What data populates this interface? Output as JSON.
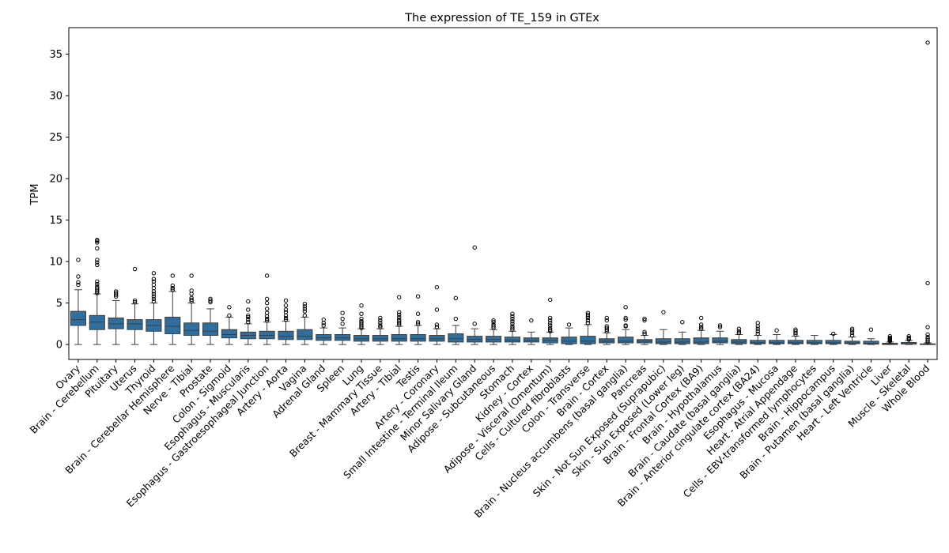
{
  "chart_data": {
    "type": "box",
    "title": "The expression of TE_159 in GTEx",
    "xlabel": "",
    "ylabel": "TPM",
    "ylim": [
      -1.8,
      38.2
    ],
    "yticks": [
      0,
      5,
      10,
      15,
      20,
      25,
      30,
      35
    ],
    "box_color": "#2f6f9f",
    "categories": [
      "Ovary",
      "Brain - Cerebellum",
      "Pituitary",
      "Uterus",
      "Thyroid",
      "Brain - Cerebellar Hemisphere",
      "Nerve - Tibial",
      "Prostate",
      "Colon - Sigmoid",
      "Esophagus - Muscularis",
      "Esophagus - Gastroesophageal Junction",
      "Artery - Aorta",
      "Vagina",
      "Adrenal Gland",
      "Spleen",
      "Lung",
      "Breast - Mammary Tissue",
      "Artery - Tibial",
      "Testis",
      "Artery - Coronary",
      "Small Intestine - Terminal Ileum",
      "Minor Salivary Gland",
      "Adipose - Subcutaneous",
      "Stomach",
      "Kidney - Cortex",
      "Adipose - Visceral (Omentum)",
      "Cells - Cultured fibroblasts",
      "Colon - Transverse",
      "Brain - Cortex",
      "Brain - Nucleus accumbens (basal ganglia)",
      "Pancreas",
      "Skin - Not Sun Exposed (Suprapubic)",
      "Skin - Sun Exposed (Lower leg)",
      "Brain - Frontal Cortex (BA9)",
      "Brain - Hypothalamus",
      "Brain - Caudate (basal ganglia)",
      "Brain - Anterior cingulate cortex (BA24)",
      "Esophagus - Mucosa",
      "Heart - Atrial Appendage",
      "Cells - EBV-transformed lymphocytes",
      "Brain - Hippocampus",
      "Brain - Putamen (basal ganglia)",
      "Heart - Left Ventricle",
      "Liver",
      "Muscle - Skeletal",
      "Whole Blood"
    ],
    "boxes": [
      {
        "whislo": 0,
        "q1": 2.3,
        "med": 3.0,
        "q3": 4.0,
        "whishi": 6.6,
        "fliers": [
          7.2,
          7.5,
          8.2,
          10.2
        ]
      },
      {
        "whislo": 0,
        "q1": 1.8,
        "med": 2.7,
        "q3": 3.5,
        "whishi": 6.1,
        "fliers": [
          6.2,
          6.4,
          6.6,
          6.8,
          7.0,
          7.3,
          7.6,
          9.6,
          9.9,
          10.2,
          11.6,
          12.3,
          12.5,
          12.6
        ]
      },
      {
        "whislo": 0,
        "q1": 1.9,
        "med": 2.5,
        "q3": 3.2,
        "whishi": 5.3,
        "fliers": [
          5.8,
          6.0,
          6.2,
          6.4
        ]
      },
      {
        "whislo": 0,
        "q1": 1.8,
        "med": 2.5,
        "q3": 3.0,
        "whishi": 4.9,
        "fliers": [
          5.1,
          5.3,
          9.1
        ]
      },
      {
        "whislo": 0,
        "q1": 1.6,
        "med": 2.3,
        "q3": 3.0,
        "whishi": 5.0,
        "fliers": [
          5.2,
          5.5,
          5.8,
          6.1,
          6.4,
          6.8,
          7.2,
          7.6,
          7.9,
          8.6
        ]
      },
      {
        "whislo": 0,
        "q1": 1.3,
        "med": 2.2,
        "q3": 3.3,
        "whishi": 6.4,
        "fliers": [
          6.6,
          6.8,
          7.1,
          8.3
        ]
      },
      {
        "whislo": 0,
        "q1": 1.1,
        "med": 1.7,
        "q3": 2.6,
        "whishi": 5.0,
        "fliers": [
          5.2,
          5.4,
          5.6,
          6.1,
          6.5,
          8.3
        ]
      },
      {
        "whislo": 0,
        "q1": 1.1,
        "med": 1.6,
        "q3": 2.6,
        "whishi": 4.3,
        "fliers": [
          5.1,
          5.3,
          5.5
        ]
      },
      {
        "whislo": 0,
        "q1": 0.8,
        "med": 1.2,
        "q3": 1.8,
        "whishi": 3.3,
        "fliers": [
          3.5,
          4.5
        ]
      },
      {
        "whislo": 0,
        "q1": 0.7,
        "med": 1.1,
        "q3": 1.5,
        "whishi": 2.5,
        "fliers": [
          2.7,
          3.0,
          3.3,
          3.5,
          4.2,
          5.2
        ]
      },
      {
        "whislo": 0,
        "q1": 0.7,
        "med": 1.1,
        "q3": 1.6,
        "whishi": 2.7,
        "fliers": [
          2.9,
          3.1,
          3.4,
          3.8,
          4.3,
          5.0,
          5.5,
          8.3
        ]
      },
      {
        "whislo": 0,
        "q1": 0.6,
        "med": 1.0,
        "q3": 1.6,
        "whishi": 2.8,
        "fliers": [
          3.0,
          3.2,
          3.5,
          3.9,
          4.2,
          4.7,
          5.3
        ]
      },
      {
        "whislo": 0,
        "q1": 0.6,
        "med": 1.0,
        "q3": 1.8,
        "whishi": 3.3,
        "fliers": [
          3.5,
          4.0,
          4.3,
          4.6,
          4.9
        ]
      },
      {
        "whislo": 0,
        "q1": 0.5,
        "med": 0.8,
        "q3": 1.2,
        "whishi": 2.0,
        "fliers": [
          2.3,
          2.6,
          3.0
        ]
      },
      {
        "whislo": 0,
        "q1": 0.5,
        "med": 0.8,
        "q3": 1.2,
        "whishi": 2.0,
        "fliers": [
          2.5,
          3.1,
          3.8
        ]
      },
      {
        "whislo": 0,
        "q1": 0.4,
        "med": 0.7,
        "q3": 1.1,
        "whishi": 1.9,
        "fliers": [
          2.0,
          2.2,
          2.4,
          2.6,
          2.8,
          3.1,
          3.7,
          4.7
        ]
      },
      {
        "whislo": 0,
        "q1": 0.4,
        "med": 0.7,
        "q3": 1.1,
        "whishi": 1.9,
        "fliers": [
          2.1,
          2.3,
          2.6,
          2.9,
          3.2
        ]
      },
      {
        "whislo": 0,
        "q1": 0.4,
        "med": 0.7,
        "q3": 1.2,
        "whishi": 2.2,
        "fliers": [
          2.4,
          2.6,
          2.8,
          3.0,
          3.3,
          3.6,
          3.9,
          5.7
        ]
      },
      {
        "whislo": 0,
        "q1": 0.4,
        "med": 0.7,
        "q3": 1.2,
        "whishi": 2.3,
        "fliers": [
          2.5,
          2.7,
          3.7,
          5.8
        ]
      },
      {
        "whislo": 0,
        "q1": 0.4,
        "med": 0.7,
        "q3": 1.1,
        "whishi": 1.9,
        "fliers": [
          2.1,
          2.4,
          4.2,
          6.9
        ]
      },
      {
        "whislo": 0,
        "q1": 0.3,
        "med": 0.7,
        "q3": 1.3,
        "whishi": 2.3,
        "fliers": [
          3.1,
          5.6
        ]
      },
      {
        "whislo": 0,
        "q1": 0.3,
        "med": 0.6,
        "q3": 1.0,
        "whishi": 1.9,
        "fliers": [
          2.5,
          11.7
        ]
      },
      {
        "whislo": 0,
        "q1": 0.3,
        "med": 0.6,
        "q3": 1.0,
        "whishi": 1.8,
        "fliers": [
          2.0,
          2.2,
          2.4,
          2.7,
          2.9
        ]
      },
      {
        "whislo": 0,
        "q1": 0.3,
        "med": 0.5,
        "q3": 0.9,
        "whishi": 1.6,
        "fliers": [
          1.8,
          2.0,
          2.2,
          2.5,
          2.8,
          3.1,
          3.4,
          3.7
        ]
      },
      {
        "whislo": 0,
        "q1": 0.3,
        "med": 0.5,
        "q3": 0.8,
        "whishi": 1.5,
        "fliers": [
          2.9
        ]
      },
      {
        "whislo": 0,
        "q1": 0.2,
        "med": 0.5,
        "q3": 0.8,
        "whishi": 1.5,
        "fliers": [
          1.6,
          1.8,
          2.0,
          2.3,
          2.6,
          2.9,
          3.2,
          5.4
        ]
      },
      {
        "whislo": 0,
        "q1": 0.1,
        "med": 0.4,
        "q3": 0.9,
        "whishi": 2.0,
        "fliers": [
          2.4
        ]
      },
      {
        "whislo": 0,
        "q1": 0.1,
        "med": 0.4,
        "q3": 1.0,
        "whishi": 2.4,
        "fliers": [
          2.6,
          2.9,
          3.2,
          3.4,
          3.6,
          3.8
        ]
      },
      {
        "whislo": 0,
        "q1": 0.2,
        "med": 0.4,
        "q3": 0.7,
        "whishi": 1.4,
        "fliers": [
          1.6,
          1.8,
          2.0,
          2.2,
          2.9,
          3.2
        ]
      },
      {
        "whislo": 0,
        "q1": 0.2,
        "med": 0.4,
        "q3": 0.9,
        "whishi": 1.8,
        "fliers": [
          2.2,
          2.3,
          3.0,
          3.2,
          4.5
        ]
      },
      {
        "whislo": 0,
        "q1": 0.2,
        "med": 0.4,
        "q3": 0.6,
        "whishi": 1.1,
        "fliers": [
          1.3,
          1.5,
          2.9,
          3.1
        ]
      },
      {
        "whislo": 0,
        "q1": 0.1,
        "med": 0.3,
        "q3": 0.7,
        "whishi": 1.8,
        "fliers": [
          3.9
        ]
      },
      {
        "whislo": 0,
        "q1": 0.1,
        "med": 0.3,
        "q3": 0.7,
        "whishi": 1.5,
        "fliers": [
          2.7
        ]
      },
      {
        "whislo": 0,
        "q1": 0.1,
        "med": 0.3,
        "q3": 0.8,
        "whishi": 1.7,
        "fliers": [
          1.9,
          2.1,
          2.4,
          3.2
        ]
      },
      {
        "whislo": 0,
        "q1": 0.2,
        "med": 0.4,
        "q3": 0.8,
        "whishi": 1.6,
        "fliers": [
          2.1,
          2.3
        ]
      },
      {
        "whislo": 0,
        "q1": 0.1,
        "med": 0.3,
        "q3": 0.6,
        "whishi": 1.2,
        "fliers": [
          1.4,
          1.6,
          1.9
        ]
      },
      {
        "whislo": 0,
        "q1": 0.1,
        "med": 0.2,
        "q3": 0.5,
        "whishi": 1.1,
        "fliers": [
          1.3,
          1.6,
          1.9,
          2.2,
          2.6
        ]
      },
      {
        "whislo": 0,
        "q1": 0.1,
        "med": 0.2,
        "q3": 0.5,
        "whishi": 1.2,
        "fliers": [
          1.7
        ]
      },
      {
        "whislo": 0,
        "q1": 0.1,
        "med": 0.2,
        "q3": 0.5,
        "whishi": 1.0,
        "fliers": [
          1.2,
          1.4,
          1.6,
          1.8
        ]
      },
      {
        "whislo": 0,
        "q1": 0.1,
        "med": 0.2,
        "q3": 0.5,
        "whishi": 1.1,
        "fliers": []
      },
      {
        "whislo": 0,
        "q1": 0.1,
        "med": 0.2,
        "q3": 0.5,
        "whishi": 1.2,
        "fliers": [
          1.3
        ]
      },
      {
        "whislo": 0,
        "q1": 0.1,
        "med": 0.2,
        "q3": 0.4,
        "whishi": 0.9,
        "fliers": [
          1.1,
          1.4,
          1.7,
          1.9
        ]
      },
      {
        "whislo": 0,
        "q1": 0.05,
        "med": 0.15,
        "q3": 0.4,
        "whishi": 0.7,
        "fliers": [
          1.8
        ]
      },
      {
        "whislo": 0,
        "q1": 0.0,
        "med": 0.05,
        "q3": 0.15,
        "whishi": 0.3,
        "fliers": [
          0.4,
          0.5,
          0.6,
          0.7,
          0.8,
          1.0
        ]
      },
      {
        "whislo": 0,
        "q1": 0.05,
        "med": 0.1,
        "q3": 0.25,
        "whishi": 0.5,
        "fliers": [
          0.6,
          0.7,
          0.8,
          1.0
        ]
      },
      {
        "whislo": 0,
        "q1": 0.0,
        "med": 0.02,
        "q3": 0.08,
        "whishi": 0.2,
        "fliers": [
          0.3,
          0.5,
          0.7,
          0.9,
          1.2,
          2.1,
          7.4,
          36.4
        ]
      }
    ]
  }
}
